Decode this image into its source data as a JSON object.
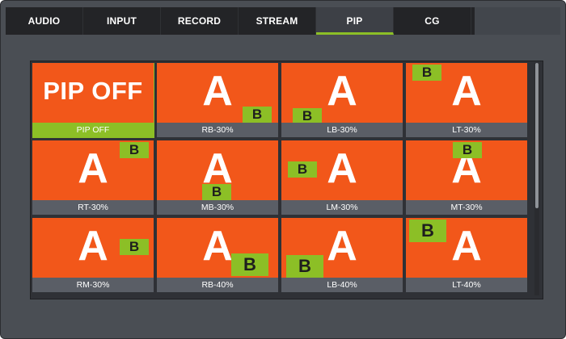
{
  "tabs": [
    {
      "label": "AUDIO",
      "active": false
    },
    {
      "label": "INPUT",
      "active": false
    },
    {
      "label": "RECORD",
      "active": false
    },
    {
      "label": "STREAM",
      "active": false
    },
    {
      "label": "PIP",
      "active": true
    },
    {
      "label": "CG",
      "active": false
    }
  ],
  "colors": {
    "accent": "#8cbf26",
    "thumbnail": "#f2571a",
    "background": "#4a4e54"
  },
  "pip_modes": [
    {
      "label": "PIP OFF",
      "main_text": "PIP OFF",
      "selected": true,
      "pip_text": "",
      "position": "none",
      "size": "none"
    },
    {
      "label": "RB-30%",
      "main_text": "A",
      "selected": false,
      "pip_text": "B",
      "position": "right-bottom",
      "size": "30%"
    },
    {
      "label": "LB-30%",
      "main_text": "A",
      "selected": false,
      "pip_text": "B",
      "position": "left-bottom",
      "size": "30%"
    },
    {
      "label": "LT-30%",
      "main_text": "A",
      "selected": false,
      "pip_text": "B",
      "position": "left-top",
      "size": "30%"
    },
    {
      "label": "RT-30%",
      "main_text": "A",
      "selected": false,
      "pip_text": "B",
      "position": "right-top",
      "size": "30%"
    },
    {
      "label": "MB-30%",
      "main_text": "A",
      "selected": false,
      "pip_text": "B",
      "position": "middle-bottom",
      "size": "30%"
    },
    {
      "label": "LM-30%",
      "main_text": "A",
      "selected": false,
      "pip_text": "B",
      "position": "left-middle",
      "size": "30%"
    },
    {
      "label": "MT-30%",
      "main_text": "A",
      "selected": false,
      "pip_text": "B",
      "position": "middle-top",
      "size": "30%"
    },
    {
      "label": "RM-30%",
      "main_text": "A",
      "selected": false,
      "pip_text": "B",
      "position": "right-middle",
      "size": "30%"
    },
    {
      "label": "RB-40%",
      "main_text": "A",
      "selected": false,
      "pip_text": "B",
      "position": "right-bottom",
      "size": "40%"
    },
    {
      "label": "LB-40%",
      "main_text": "A",
      "selected": false,
      "pip_text": "B",
      "position": "left-bottom",
      "size": "40%"
    },
    {
      "label": "LT-40%",
      "main_text": "A",
      "selected": false,
      "pip_text": "B",
      "position": "left-top",
      "size": "40%"
    }
  ]
}
